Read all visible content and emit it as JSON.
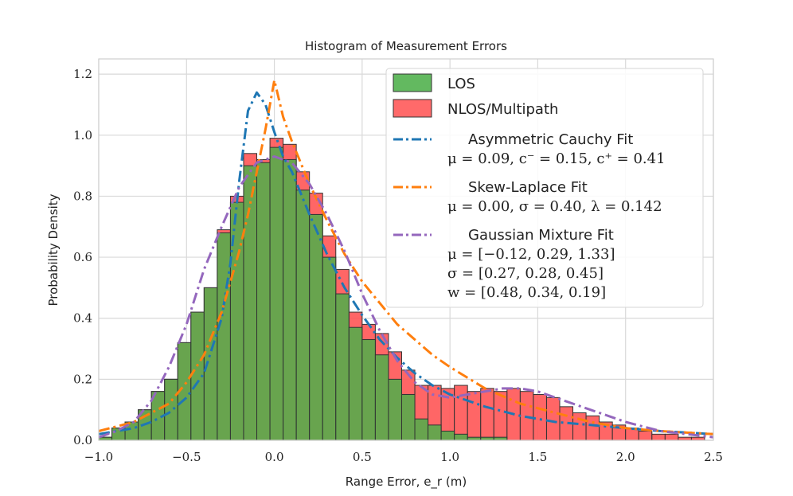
{
  "chart_data": {
    "type": "bar",
    "title": "Histogram of Measurement Errors",
    "xlabel": "Range Error, e_r (m)",
    "ylabel": "Probability Density",
    "xlim": [
      -1.0,
      2.5
    ],
    "ylim": [
      0.0,
      1.25
    ],
    "xticks": [
      "-1.0",
      "-0.5",
      "0.0",
      "0.5",
      "1.0",
      "1.5",
      "2.0",
      "2.5"
    ],
    "yticks": [
      "0.0",
      "0.2",
      "0.4",
      "0.6",
      "0.8",
      "1.0",
      "1.2"
    ],
    "grid": true,
    "legend_position": "top-right",
    "bin_start": -1.0,
    "bin_width": 0.075,
    "series": [
      {
        "name": "LOS",
        "color": "#4daf4a",
        "values": [
          0.01,
          0.04,
          0.06,
          0.1,
          0.16,
          0.2,
          0.32,
          0.42,
          0.5,
          0.68,
          0.78,
          0.9,
          0.91,
          0.96,
          0.92,
          0.82,
          0.74,
          0.6,
          0.48,
          0.37,
          0.33,
          0.28,
          0.2,
          0.15,
          0.07,
          0.05,
          0.03,
          0.02,
          0.01,
          0.01,
          0.01,
          0.0,
          0.0,
          0.0,
          0.0,
          0.0,
          0.0,
          0.0,
          0.0,
          0.0,
          0.0,
          0.0,
          0.0,
          0.0,
          0.0,
          0.0,
          0.0
        ]
      },
      {
        "name": "NLOS/Multipath",
        "color": "#ff5555",
        "values": [
          0.01,
          0.04,
          0.06,
          0.1,
          0.16,
          0.2,
          0.32,
          0.42,
          0.5,
          0.69,
          0.8,
          0.94,
          0.92,
          0.99,
          0.97,
          0.88,
          0.81,
          0.67,
          0.56,
          0.42,
          0.38,
          0.35,
          0.29,
          0.23,
          0.18,
          0.18,
          0.17,
          0.18,
          0.16,
          0.17,
          0.16,
          0.17,
          0.16,
          0.15,
          0.14,
          0.11,
          0.09,
          0.08,
          0.06,
          0.05,
          0.04,
          0.03,
          0.02,
          0.02,
          0.01,
          0.01,
          0.0
        ]
      }
    ],
    "fits": [
      {
        "name": "Asymmetric Cauchy Fit",
        "params": [
          "μ = 0.09, c⁻ = 0.15, c⁺ = 0.41"
        ],
        "color": "#1f77b4",
        "x": [
          -1.0,
          -0.9,
          -0.8,
          -0.7,
          -0.6,
          -0.5,
          -0.4,
          -0.3,
          -0.25,
          -0.2,
          -0.15,
          -0.1,
          -0.05,
          0.0,
          0.05,
          0.1,
          0.2,
          0.3,
          0.4,
          0.5,
          0.6,
          0.7,
          0.8,
          0.9,
          1.0,
          1.2,
          1.4,
          1.6,
          1.8,
          2.0,
          2.2,
          2.5
        ],
        "y": [
          0.02,
          0.03,
          0.04,
          0.06,
          0.09,
          0.14,
          0.22,
          0.4,
          0.58,
          0.85,
          1.08,
          1.14,
          1.1,
          1.01,
          0.93,
          0.88,
          0.74,
          0.61,
          0.5,
          0.41,
          0.33,
          0.27,
          0.22,
          0.18,
          0.15,
          0.11,
          0.08,
          0.06,
          0.05,
          0.04,
          0.03,
          0.02
        ]
      },
      {
        "name": "Skew-Laplace Fit",
        "params": [
          "μ = 0.00,  σ = 0.40,  λ = 0.142"
        ],
        "color": "#ff7f0e",
        "x": [
          -1.0,
          -0.8,
          -0.6,
          -0.5,
          -0.4,
          -0.3,
          -0.2,
          -0.15,
          -0.1,
          -0.05,
          0.0,
          0.05,
          0.1,
          0.2,
          0.3,
          0.4,
          0.5,
          0.6,
          0.7,
          0.8,
          0.9,
          1.0,
          1.2,
          1.4,
          1.6,
          1.8,
          2.0,
          2.2,
          2.5
        ],
        "y": [
          0.03,
          0.06,
          0.12,
          0.19,
          0.28,
          0.42,
          0.62,
          0.74,
          0.88,
          1.02,
          1.18,
          1.06,
          0.98,
          0.84,
          0.72,
          0.61,
          0.52,
          0.45,
          0.38,
          0.33,
          0.28,
          0.24,
          0.17,
          0.12,
          0.09,
          0.06,
          0.04,
          0.03,
          0.02
        ]
      },
      {
        "name": "Gaussian Mixture Fit",
        "params": [
          "μ = [−0.12, 0.29, 1.33]",
          "σ = [0.27, 0.28, 0.45]",
          "w = [0.48, 0.34, 0.19]"
        ],
        "color": "#9467bd",
        "x": [
          -1.0,
          -0.9,
          -0.8,
          -0.7,
          -0.6,
          -0.5,
          -0.4,
          -0.3,
          -0.2,
          -0.1,
          0.0,
          0.1,
          0.2,
          0.3,
          0.4,
          0.5,
          0.6,
          0.7,
          0.8,
          0.9,
          1.0,
          1.1,
          1.2,
          1.3,
          1.4,
          1.5,
          1.6,
          1.7,
          1.8,
          1.9,
          2.0,
          2.2,
          2.5
        ],
        "y": [
          0.01,
          0.03,
          0.06,
          0.13,
          0.24,
          0.38,
          0.56,
          0.7,
          0.83,
          0.91,
          0.93,
          0.91,
          0.84,
          0.74,
          0.62,
          0.48,
          0.36,
          0.26,
          0.19,
          0.15,
          0.14,
          0.15,
          0.16,
          0.17,
          0.17,
          0.16,
          0.14,
          0.12,
          0.1,
          0.08,
          0.06,
          0.03,
          0.01
        ]
      }
    ]
  }
}
